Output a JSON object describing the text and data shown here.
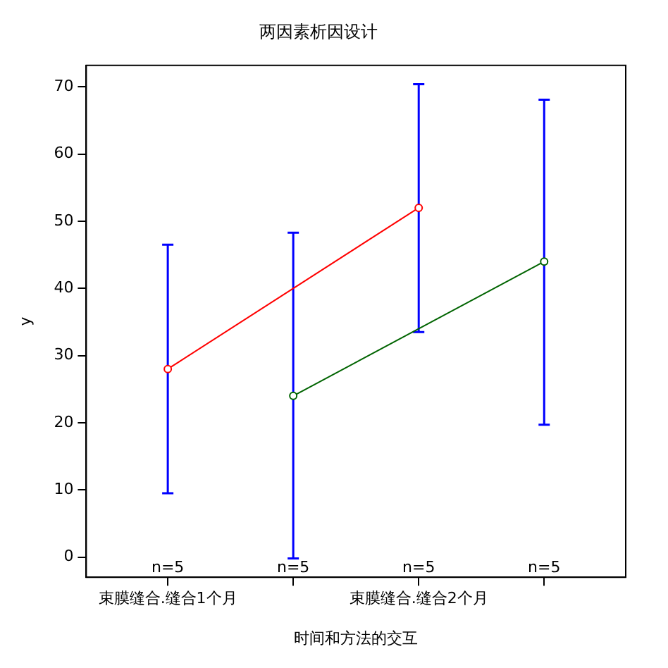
{
  "chart_data": {
    "type": "line",
    "title": "两因素析因设计",
    "xlabel": "时间和方法的交互",
    "ylabel": "y",
    "categories": [
      "束膜缝合.缝合1个月",
      null,
      "束膜缝合.缝合2个月",
      null
    ],
    "series": [
      {
        "color": "#ff0000",
        "values": [
          28,
          null,
          52,
          null
        ],
        "errors": [
          [
            9.5,
            46.5
          ],
          null,
          [
            33.5,
            70.4
          ],
          null
        ]
      },
      {
        "color": "#006400",
        "values": [
          null,
          24,
          null,
          44
        ],
        "errors": [
          null,
          [
            -0.2,
            48.3
          ],
          null,
          [
            19.7,
            68.1
          ]
        ]
      }
    ],
    "annotations": [
      "n=5",
      "n=5",
      "n=5",
      "n=5"
    ],
    "ylim": [
      -3,
      73.2
    ],
    "yticks": [
      0,
      10,
      20,
      30,
      40,
      50,
      60,
      70
    ],
    "grid": false,
    "legend": false,
    "marker": "circle",
    "line_style": "solid"
  }
}
